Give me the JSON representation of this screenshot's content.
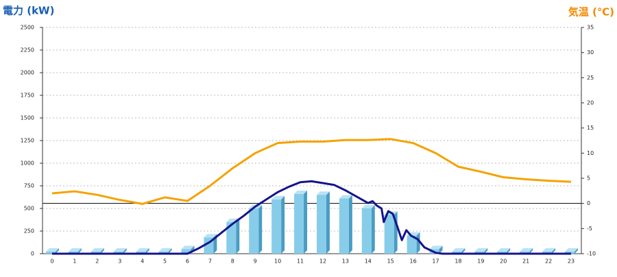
{
  "chart_data": {
    "type": "bar",
    "y_title": "電力 (kW)",
    "y2_title": "気温 (℃)",
    "categories": [
      "0",
      "1",
      "2",
      "3",
      "4",
      "5",
      "6",
      "7",
      "8",
      "9",
      "10",
      "11",
      "12",
      "13",
      "14",
      "15",
      "16",
      "17",
      "18",
      "19",
      "20",
      "21",
      "22",
      "23"
    ],
    "ylim": [
      0,
      2500
    ],
    "yticks": [
      0,
      250,
      500,
      750,
      1000,
      1250,
      1500,
      1750,
      2000,
      2250,
      2500
    ],
    "y2lim": [
      -10,
      35
    ],
    "y2ticks": [
      -10,
      -5,
      0,
      5,
      10,
      15,
      20,
      25,
      30,
      35
    ],
    "grid": true,
    "series": [
      {
        "type": "bar",
        "color": "#87cdea",
        "values": [
          0,
          0,
          0,
          0,
          0,
          0,
          50,
          180,
          350,
          500,
          600,
          660,
          650,
          610,
          500,
          430,
          200,
          50,
          0,
          0,
          0,
          0,
          0,
          0
        ]
      },
      {
        "type": "line",
        "color": "#14148c",
        "x": [
          0,
          6,
          6.5,
          7,
          7.5,
          8,
          8.5,
          9,
          9.5,
          10,
          10.5,
          11,
          11.5,
          12,
          12.5,
          13,
          13.5,
          14,
          14.2,
          14.4,
          14.6,
          14.7,
          14.9,
          15.1,
          15.3,
          15.5,
          15.7,
          15.9,
          16.2,
          16.5,
          17,
          17.3,
          23
        ],
        "values": [
          0,
          0,
          60,
          130,
          230,
          330,
          420,
          520,
          600,
          680,
          740,
          790,
          800,
          780,
          760,
          700,
          630,
          560,
          580,
          530,
          500,
          350,
          470,
          440,
          300,
          150,
          260,
          200,
          160,
          70,
          10,
          0,
          0
        ]
      },
      {
        "type": "line",
        "axis": "y2",
        "color": "#f5a200",
        "values": [
          2.0,
          2.4,
          1.7,
          0.7,
          -0.1,
          1.2,
          0.5,
          3.5,
          7,
          10,
          12,
          12.3,
          12.3,
          12.6,
          12.6,
          12.8,
          12,
          10,
          7.3,
          6.3,
          5.2,
          4.8,
          4.5,
          4.3
        ]
      }
    ]
  }
}
